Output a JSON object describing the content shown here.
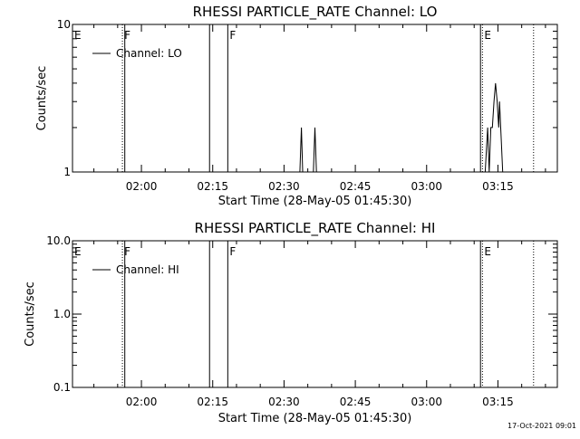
{
  "chart_data": [
    {
      "type": "line",
      "title": "RHESSI PARTICLE_RATE Channel: LO",
      "xlabel": "Start Time (28-May-05 01:45:30)",
      "ylabel": "Counts/sec",
      "y_scale": "log",
      "ylim": [
        1,
        10
      ],
      "xlim": [
        "01:45:30",
        "03:27:30"
      ],
      "y_tick_labels": [
        {
          "v": 1,
          "t": "1"
        },
        {
          "v": 10,
          "t": "10"
        }
      ],
      "x_ticks": [
        "02:00",
        "02:15",
        "02:30",
        "02:45",
        "03:00",
        "03:15"
      ],
      "legend": {
        "placement": "top-left",
        "entries": [
          "Channel: LO"
        ]
      },
      "annotations": [
        {
          "time": "01:45:30",
          "text": "E",
          "line": "none"
        },
        {
          "time": "01:56:00",
          "text": "F",
          "line": "dotted"
        },
        {
          "time": "01:56:30",
          "text": "",
          "line": "solid"
        },
        {
          "time": "02:14:20",
          "text": "",
          "line": "solid"
        },
        {
          "time": "02:18:10",
          "text": "F",
          "line": "solid"
        },
        {
          "time": "03:11:20",
          "text": "",
          "line": "solid"
        },
        {
          "time": "03:11:45",
          "text": "E",
          "line": "dotted"
        },
        {
          "time": "03:22:30",
          "text": "",
          "line": "dotted"
        }
      ],
      "series": [
        {
          "points": [
            [
              "02:33:20",
              1
            ],
            [
              "02:33:40",
              2
            ],
            [
              "02:33:55",
              1
            ],
            [
              "02:36:10",
              1
            ],
            [
              "02:36:30",
              2
            ],
            [
              "02:36:50",
              1
            ],
            [
              "03:12:20",
              1
            ],
            [
              "03:12:50",
              2
            ],
            [
              "03:13:10",
              1
            ],
            [
              "03:13:30",
              2
            ],
            [
              "03:13:50",
              2
            ],
            [
              "03:14:10",
              3
            ],
            [
              "03:14:30",
              4
            ],
            [
              "03:14:50",
              3
            ],
            [
              "03:15:10",
              2
            ],
            [
              "03:15:20",
              3
            ],
            [
              "03:15:35",
              2
            ],
            [
              "03:16:00",
              1
            ]
          ]
        }
      ]
    },
    {
      "type": "line",
      "title": "RHESSI PARTICLE_RATE Channel: HI",
      "xlabel": "Start Time (28-May-05 01:45:30)",
      "ylabel": "Counts/sec",
      "y_scale": "log",
      "ylim": [
        0.1,
        10
      ],
      "xlim": [
        "01:45:30",
        "03:27:30"
      ],
      "y_tick_labels": [
        {
          "v": 0.1,
          "t": "0.1"
        },
        {
          "v": 1,
          "t": "1.0"
        },
        {
          "v": 10,
          "t": "10.0"
        }
      ],
      "x_ticks": [
        "02:00",
        "02:15",
        "02:30",
        "02:45",
        "03:00",
        "03:15"
      ],
      "legend": {
        "placement": "top-left",
        "entries": [
          "Channel: HI"
        ]
      },
      "annotations": [
        {
          "time": "01:45:30",
          "text": "E",
          "line": "none"
        },
        {
          "time": "01:56:00",
          "text": "F",
          "line": "dotted"
        },
        {
          "time": "01:56:30",
          "text": "",
          "line": "solid"
        },
        {
          "time": "02:14:20",
          "text": "",
          "line": "solid"
        },
        {
          "time": "02:18:10",
          "text": "F",
          "line": "solid"
        },
        {
          "time": "03:11:20",
          "text": "",
          "line": "solid"
        },
        {
          "time": "03:11:45",
          "text": "E",
          "line": "dotted"
        },
        {
          "time": "03:22:30",
          "text": "",
          "line": "dotted"
        }
      ],
      "series": [
        {
          "points": []
        }
      ]
    }
  ],
  "footer": {
    "timestamp": "17-Oct-2021 09:01"
  }
}
